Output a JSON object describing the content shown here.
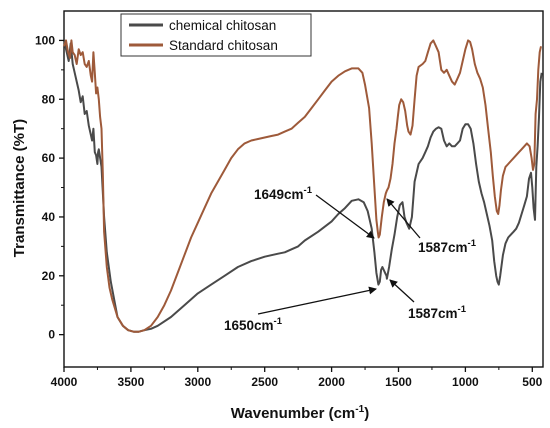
{
  "chart_data": {
    "type": "line",
    "title": "",
    "xlabel": "Wavenumber (cm",
    "xlabel_sup": "-1",
    "xlabel_tail": ")",
    "ylabel": "Transmittance (%T)",
    "xlim": [
      4000,
      420
    ],
    "ylim": [
      -11,
      110
    ],
    "x_ticks": [
      4000,
      3500,
      3000,
      2500,
      2000,
      1500,
      1000,
      500
    ],
    "y_ticks": [
      0,
      20,
      40,
      60,
      80,
      100
    ],
    "grid": false,
    "legend_position": "top-left",
    "series": [
      {
        "name": "chemical chitosan",
        "color": "#4a4a4a",
        "points": [
          [
            4000,
            100
          ],
          [
            3980,
            96
          ],
          [
            3965,
            93
          ],
          [
            3950,
            99
          ],
          [
            3935,
            92
          ],
          [
            3920,
            89
          ],
          [
            3905,
            86
          ],
          [
            3890,
            83
          ],
          [
            3875,
            79
          ],
          [
            3860,
            81
          ],
          [
            3845,
            75
          ],
          [
            3830,
            76
          ],
          [
            3815,
            71
          ],
          [
            3800,
            68
          ],
          [
            3790,
            66
          ],
          [
            3780,
            70
          ],
          [
            3770,
            62
          ],
          [
            3760,
            61
          ],
          [
            3750,
            58
          ],
          [
            3745,
            62
          ],
          [
            3740,
            63
          ],
          [
            3720,
            57
          ],
          [
            3700,
            40
          ],
          [
            3680,
            28
          ],
          [
            3650,
            18
          ],
          [
            3600,
            6
          ],
          [
            3560,
            3
          ],
          [
            3520,
            1.5
          ],
          [
            3480,
            1
          ],
          [
            3440,
            1
          ],
          [
            3400,
            1.5
          ],
          [
            3350,
            2
          ],
          [
            3300,
            3
          ],
          [
            3200,
            6
          ],
          [
            3100,
            10
          ],
          [
            3000,
            14
          ],
          [
            2900,
            17
          ],
          [
            2800,
            20
          ],
          [
            2700,
            23
          ],
          [
            2600,
            25
          ],
          [
            2500,
            26.5
          ],
          [
            2400,
            27.5
          ],
          [
            2350,
            28
          ],
          [
            2300,
            29
          ],
          [
            2250,
            30
          ],
          [
            2200,
            32
          ],
          [
            2100,
            35
          ],
          [
            2000,
            38.5
          ],
          [
            1950,
            41
          ],
          [
            1900,
            43
          ],
          [
            1850,
            45.5
          ],
          [
            1800,
            46
          ],
          [
            1760,
            45
          ],
          [
            1730,
            42
          ],
          [
            1700,
            36
          ],
          [
            1680,
            28
          ],
          [
            1665,
            21
          ],
          [
            1650,
            17
          ],
          [
            1640,
            18
          ],
          [
            1630,
            22
          ],
          [
            1620,
            23
          ],
          [
            1600,
            21
          ],
          [
            1590,
            20
          ],
          [
            1587,
            19
          ],
          [
            1570,
            23
          ],
          [
            1550,
            29
          ],
          [
            1530,
            34
          ],
          [
            1510,
            40
          ],
          [
            1490,
            44
          ],
          [
            1470,
            45
          ],
          [
            1455,
            40
          ],
          [
            1440,
            38
          ],
          [
            1420,
            36
          ],
          [
            1400,
            40
          ],
          [
            1380,
            52
          ],
          [
            1350,
            58
          ],
          [
            1320,
            60
          ],
          [
            1300,
            62
          ],
          [
            1280,
            64
          ],
          [
            1260,
            67
          ],
          [
            1240,
            69
          ],
          [
            1220,
            70
          ],
          [
            1200,
            70.5
          ],
          [
            1180,
            70
          ],
          [
            1160,
            66
          ],
          [
            1140,
            64
          ],
          [
            1120,
            65
          ],
          [
            1100,
            64
          ],
          [
            1080,
            64
          ],
          [
            1060,
            65
          ],
          [
            1040,
            66
          ],
          [
            1020,
            70
          ],
          [
            1000,
            71.5
          ],
          [
            980,
            71.5
          ],
          [
            960,
            70
          ],
          [
            940,
            65
          ],
          [
            920,
            58
          ],
          [
            900,
            52
          ],
          [
            880,
            48
          ],
          [
            860,
            45
          ],
          [
            840,
            41
          ],
          [
            820,
            37
          ],
          [
            800,
            32
          ],
          [
            785,
            25
          ],
          [
            770,
            20
          ],
          [
            760,
            18
          ],
          [
            750,
            17
          ],
          [
            740,
            20
          ],
          [
            720,
            27
          ],
          [
            700,
            31
          ],
          [
            680,
            33
          ],
          [
            660,
            34
          ],
          [
            640,
            35
          ],
          [
            620,
            36
          ],
          [
            600,
            38
          ],
          [
            580,
            41
          ],
          [
            560,
            44
          ],
          [
            540,
            47
          ],
          [
            525,
            53
          ],
          [
            510,
            55
          ],
          [
            500,
            50
          ],
          [
            490,
            43
          ],
          [
            480,
            39
          ],
          [
            470,
            57
          ],
          [
            460,
            64
          ],
          [
            450,
            74
          ],
          [
            440,
            86
          ],
          [
            430,
            89
          ]
        ]
      },
      {
        "name": "Standard chitosan",
        "color": "#9e5a3a",
        "points": [
          [
            4000,
            98
          ],
          [
            3985,
            100
          ],
          [
            3970,
            96
          ],
          [
            3955,
            94
          ],
          [
            3945,
            100
          ],
          [
            3935,
            96
          ],
          [
            3920,
            95
          ],
          [
            3905,
            92
          ],
          [
            3890,
            97
          ],
          [
            3875,
            95
          ],
          [
            3860,
            96
          ],
          [
            3845,
            92
          ],
          [
            3830,
            91
          ],
          [
            3815,
            93
          ],
          [
            3800,
            88
          ],
          [
            3790,
            86
          ],
          [
            3780,
            96
          ],
          [
            3770,
            89
          ],
          [
            3760,
            82
          ],
          [
            3750,
            84
          ],
          [
            3740,
            80
          ],
          [
            3730,
            74
          ],
          [
            3720,
            70
          ],
          [
            3710,
            55
          ],
          [
            3700,
            35
          ],
          [
            3680,
            23
          ],
          [
            3660,
            16
          ],
          [
            3640,
            12
          ],
          [
            3600,
            6
          ],
          [
            3560,
            3
          ],
          [
            3520,
            1.5
          ],
          [
            3480,
            1
          ],
          [
            3440,
            1
          ],
          [
            3400,
            1.5
          ],
          [
            3350,
            3
          ],
          [
            3300,
            6
          ],
          [
            3250,
            10
          ],
          [
            3200,
            15
          ],
          [
            3150,
            21
          ],
          [
            3100,
            27
          ],
          [
            3050,
            33
          ],
          [
            3000,
            38
          ],
          [
            2950,
            43
          ],
          [
            2900,
            48
          ],
          [
            2850,
            52
          ],
          [
            2800,
            56
          ],
          [
            2750,
            60
          ],
          [
            2700,
            63
          ],
          [
            2650,
            65
          ],
          [
            2600,
            66
          ],
          [
            2550,
            66.5
          ],
          [
            2500,
            67
          ],
          [
            2450,
            67.5
          ],
          [
            2400,
            68
          ],
          [
            2350,
            69
          ],
          [
            2300,
            70
          ],
          [
            2250,
            72
          ],
          [
            2200,
            74
          ],
          [
            2150,
            77
          ],
          [
            2100,
            80
          ],
          [
            2050,
            83
          ],
          [
            2000,
            86
          ],
          [
            1950,
            88
          ],
          [
            1900,
            89.5
          ],
          [
            1850,
            90.5
          ],
          [
            1800,
            90.5
          ],
          [
            1770,
            89
          ],
          [
            1750,
            85
          ],
          [
            1720,
            77
          ],
          [
            1700,
            65
          ],
          [
            1680,
            50
          ],
          [
            1665,
            39
          ],
          [
            1655,
            35
          ],
          [
            1649,
            33
          ],
          [
            1640,
            34
          ],
          [
            1625,
            40
          ],
          [
            1610,
            45
          ],
          [
            1595,
            48
          ],
          [
            1587,
            49
          ],
          [
            1575,
            50
          ],
          [
            1560,
            53
          ],
          [
            1545,
            58
          ],
          [
            1530,
            65
          ],
          [
            1515,
            70
          ],
          [
            1505,
            74
          ],
          [
            1495,
            78
          ],
          [
            1480,
            80
          ],
          [
            1465,
            79
          ],
          [
            1450,
            76
          ],
          [
            1435,
            71
          ],
          [
            1425,
            69
          ],
          [
            1410,
            68
          ],
          [
            1395,
            71
          ],
          [
            1380,
            80
          ],
          [
            1365,
            88
          ],
          [
            1350,
            91
          ],
          [
            1320,
            92
          ],
          [
            1300,
            93
          ],
          [
            1280,
            96
          ],
          [
            1260,
            99
          ],
          [
            1240,
            100
          ],
          [
            1220,
            98
          ],
          [
            1200,
            96
          ],
          [
            1180,
            90
          ],
          [
            1160,
            89
          ],
          [
            1140,
            90
          ],
          [
            1120,
            88
          ],
          [
            1100,
            86
          ],
          [
            1080,
            85
          ],
          [
            1060,
            87
          ],
          [
            1040,
            89
          ],
          [
            1020,
            93
          ],
          [
            1000,
            97
          ],
          [
            980,
            100
          ],
          [
            965,
            99.5
          ],
          [
            950,
            97
          ],
          [
            930,
            92
          ],
          [
            910,
            89
          ],
          [
            890,
            87
          ],
          [
            870,
            84
          ],
          [
            850,
            78
          ],
          [
            830,
            70
          ],
          [
            810,
            62
          ],
          [
            795,
            54
          ],
          [
            780,
            47
          ],
          [
            765,
            42
          ],
          [
            755,
            41
          ],
          [
            745,
            44
          ],
          [
            735,
            49
          ],
          [
            720,
            54
          ],
          [
            700,
            57
          ],
          [
            680,
            58
          ],
          [
            660,
            59
          ],
          [
            640,
            60
          ],
          [
            620,
            61
          ],
          [
            600,
            62
          ],
          [
            580,
            63
          ],
          [
            560,
            64
          ],
          [
            540,
            65
          ],
          [
            520,
            64
          ],
          [
            505,
            60
          ],
          [
            495,
            56
          ],
          [
            485,
            58
          ],
          [
            475,
            75
          ],
          [
            465,
            80
          ],
          [
            455,
            90
          ],
          [
            445,
            96
          ],
          [
            435,
            98
          ]
        ]
      }
    ],
    "annotations": [
      {
        "text": "1649cm",
        "sup": "-1"
      },
      {
        "text": "1587cm",
        "sup": "-1"
      },
      {
        "text": "1650cm",
        "sup": "-1"
      },
      {
        "text": "1587cm",
        "sup": "-1"
      }
    ]
  }
}
